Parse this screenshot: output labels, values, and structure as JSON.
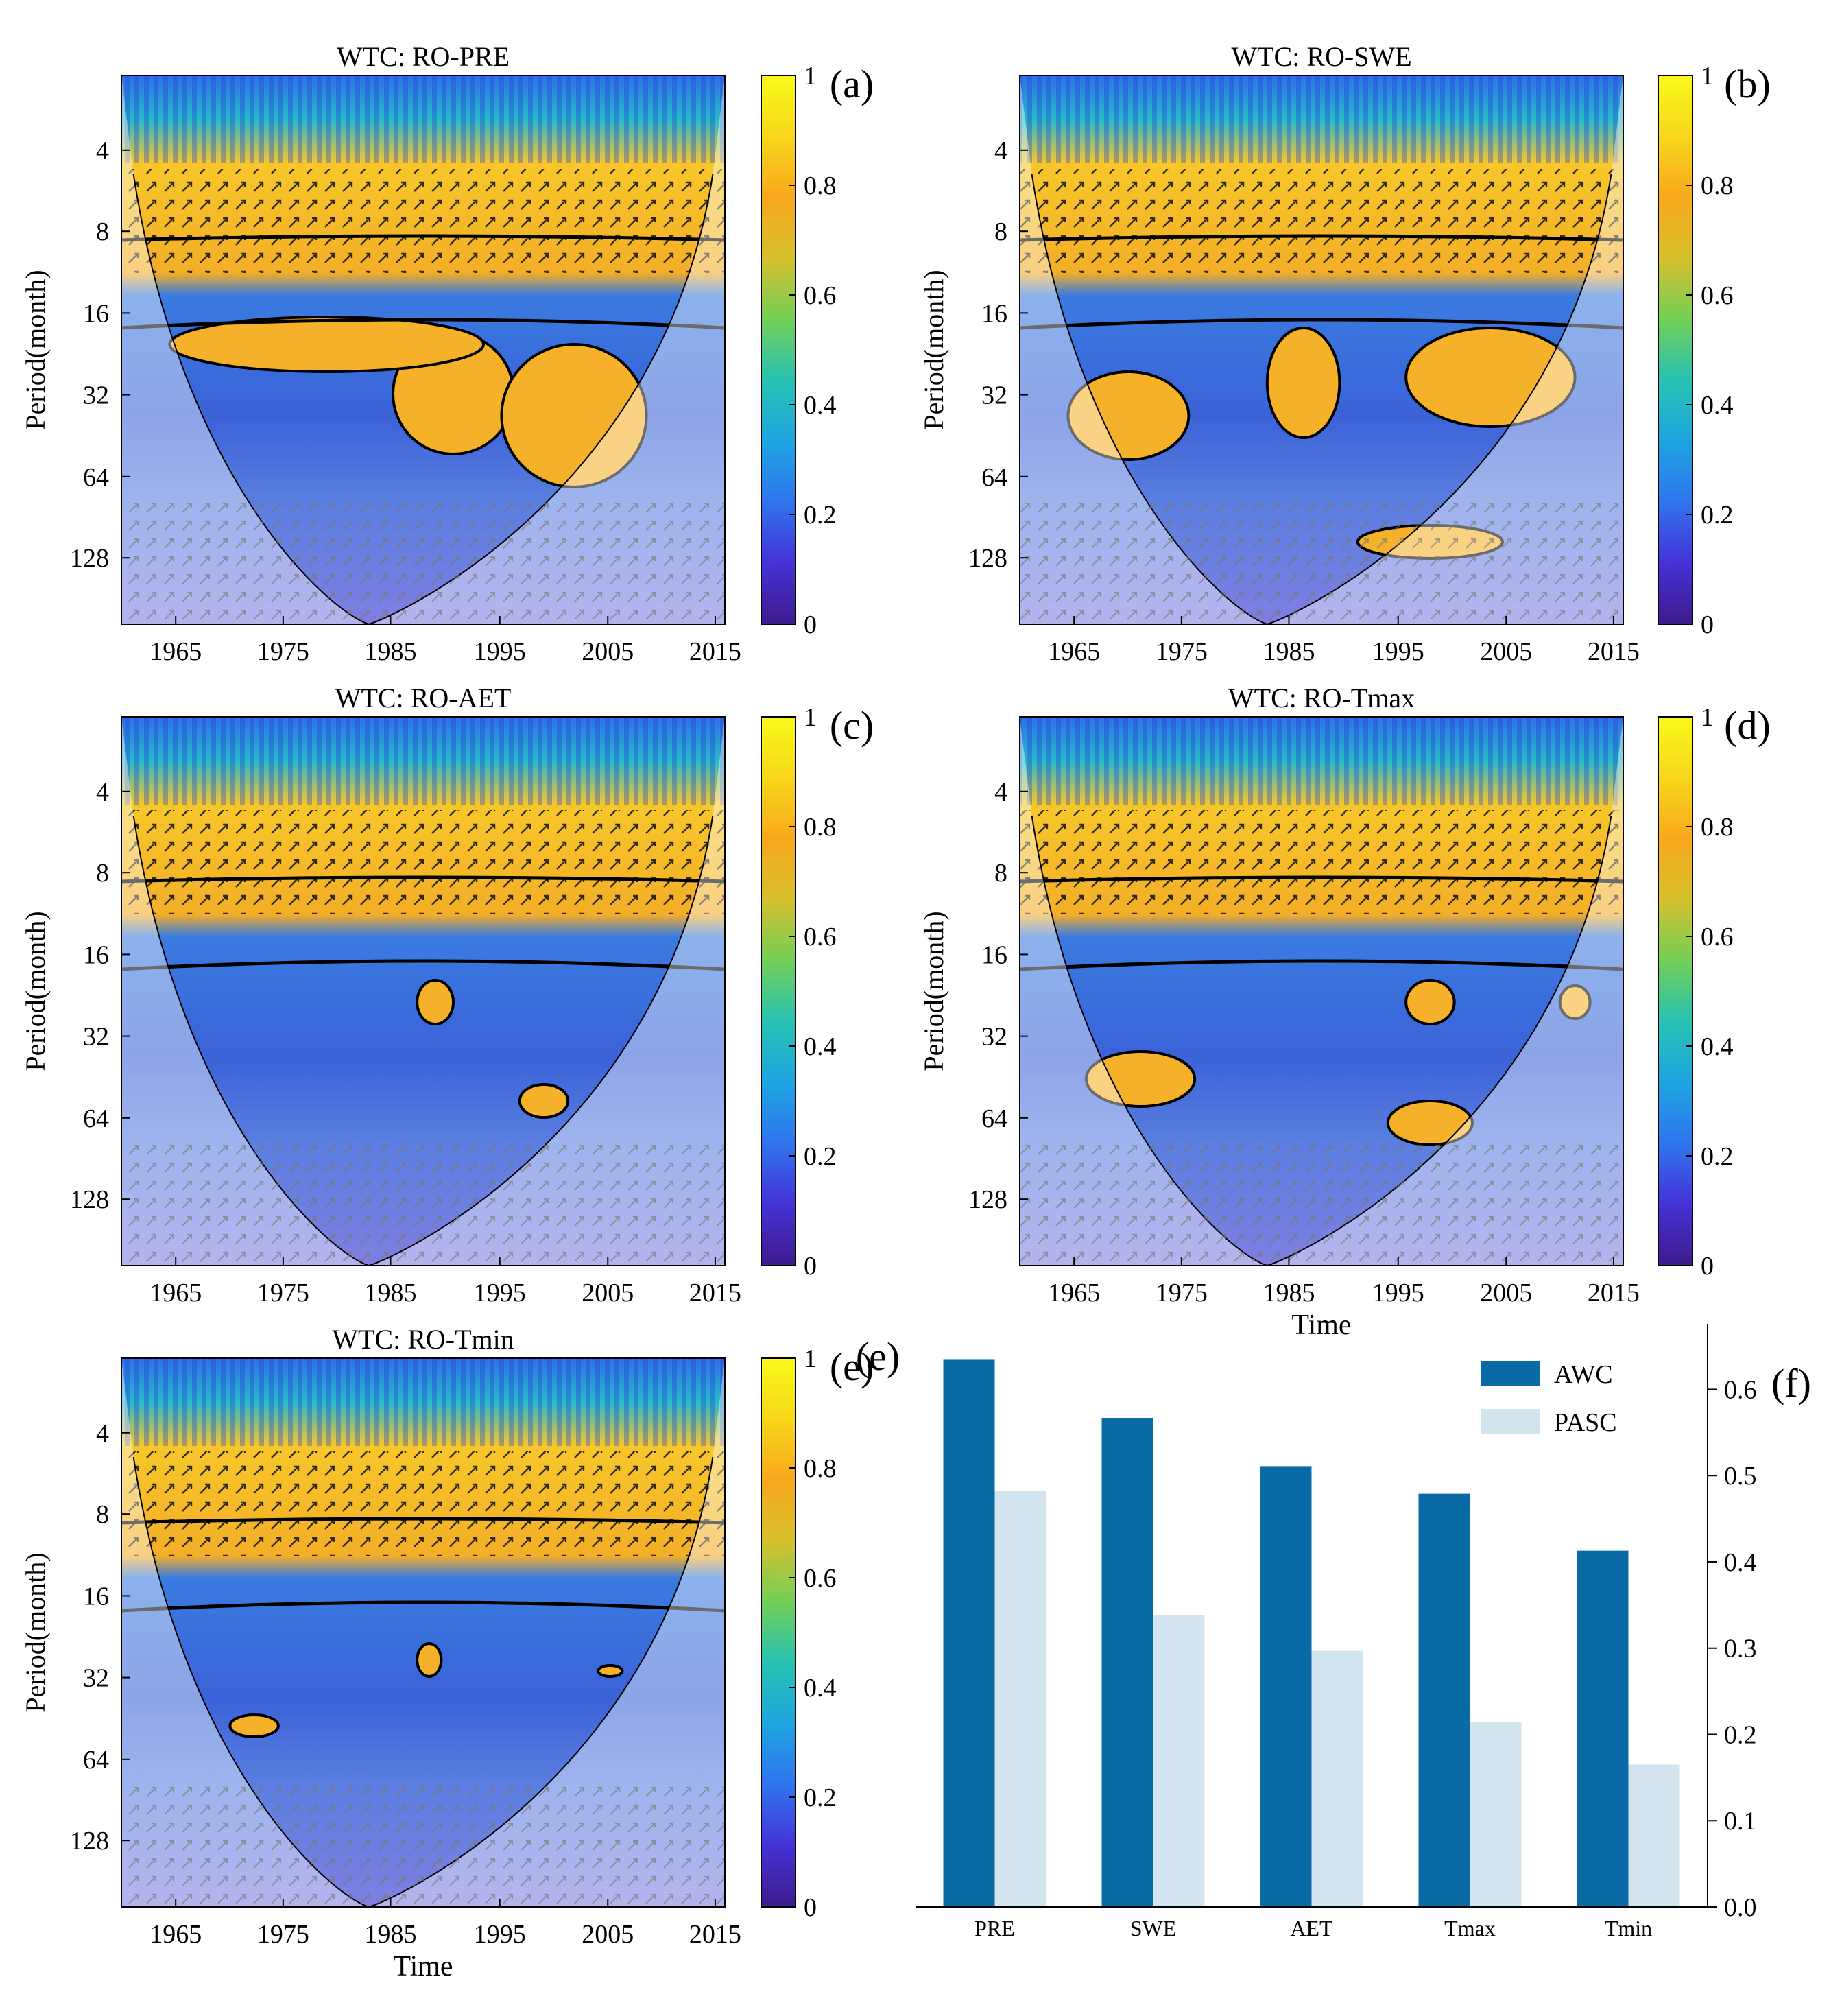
{
  "colors": {
    "awc": "#0a6aa6",
    "pasc": "#d2e5ef",
    "cmap": [
      "#3e1a8c",
      "#4532d6",
      "#2f74ee",
      "#1ea5e1",
      "#27c2b2",
      "#73cf57",
      "#d6c02d",
      "#f8a81c",
      "#f7d71b",
      "#f9f91a"
    ]
  },
  "colorbar": {
    "ticks": [
      "0",
      "0.2",
      "0.4",
      "0.6",
      "0.8",
      "1"
    ]
  },
  "period_axis": {
    "label": "Period(month)",
    "ticks": [
      "4",
      "8",
      "16",
      "32",
      "64",
      "128"
    ]
  },
  "time_axis": {
    "label": "Time",
    "ticks": [
      "1965",
      "1975",
      "1985",
      "1995",
      "2005",
      "2015"
    ]
  },
  "chart_data": [
    {
      "type": "heatmap",
      "id": "a",
      "panel_label": "(a)",
      "title": "WTC: RO-PRE",
      "xlabel": "",
      "ylabel": "Period(month)",
      "xlim": [
        1960,
        2015
      ],
      "ylim": [
        2,
        200
      ],
      "y_scale": "log2",
      "colorbar_range": [
        0,
        1
      ],
      "colorbar_ticks": [
        0,
        0.2,
        0.4,
        0.6,
        0.8,
        1
      ]
    },
    {
      "type": "heatmap",
      "id": "b",
      "panel_label": "(b)",
      "title": "WTC: RO-SWE",
      "xlabel": "",
      "ylabel": "Period(month)",
      "xlim": [
        1960,
        2015
      ],
      "ylim": [
        2,
        200
      ],
      "y_scale": "log2",
      "colorbar_range": [
        0,
        1
      ],
      "colorbar_ticks": [
        0,
        0.2,
        0.4,
        0.6,
        0.8,
        1
      ]
    },
    {
      "type": "heatmap",
      "id": "c",
      "panel_label": "(c)",
      "title": "WTC: RO-AET",
      "xlabel": "",
      "ylabel": "Period(month)",
      "xlim": [
        1960,
        2015
      ],
      "ylim": [
        2,
        200
      ],
      "y_scale": "log2",
      "colorbar_range": [
        0,
        1
      ],
      "colorbar_ticks": [
        0,
        0.2,
        0.4,
        0.6,
        0.8,
        1
      ]
    },
    {
      "type": "heatmap",
      "id": "d",
      "panel_label": "(d)",
      "title": "WTC: RO-Tmax",
      "xlabel": "Time",
      "ylabel": "Period(month)",
      "xlim": [
        1960,
        2015
      ],
      "ylim": [
        2,
        200
      ],
      "y_scale": "log2",
      "colorbar_range": [
        0,
        1
      ],
      "colorbar_ticks": [
        0,
        0.2,
        0.4,
        0.6,
        0.8,
        1
      ]
    },
    {
      "type": "heatmap",
      "id": "e",
      "panel_label": "(e)",
      "title": "WTC: RO-Tmin",
      "xlabel": "Time",
      "ylabel": "Period(month)",
      "xlim": [
        1960,
        2015
      ],
      "ylim": [
        2,
        200
      ],
      "y_scale": "log2",
      "colorbar_range": [
        0,
        1
      ],
      "colorbar_ticks": [
        0,
        0.2,
        0.4,
        0.6,
        0.8,
        1
      ]
    },
    {
      "type": "bar",
      "id": "f",
      "panel_label": "(f)",
      "title": "",
      "categories": [
        "PRE",
        "SWE",
        "AET",
        "Tmax",
        "Tmin"
      ],
      "series": [
        {
          "name": "AWC",
          "values": [
            0.635,
            0.567,
            0.511,
            0.479,
            0.413
          ]
        },
        {
          "name": "PASC",
          "values": [
            0.482,
            0.338,
            0.297,
            0.214,
            0.165
          ]
        }
      ],
      "ylim": [
        0,
        0.66
      ],
      "yticks": [
        "0.0",
        "0.1",
        "0.2",
        "0.3",
        "0.4",
        "0.5",
        "0.6"
      ],
      "legend": "top-right"
    }
  ]
}
